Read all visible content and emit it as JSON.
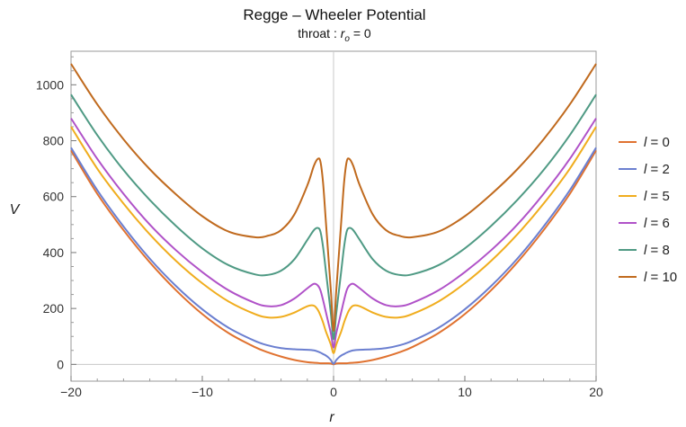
{
  "chart_data": {
    "type": "line",
    "title": "Regge – Wheeler Potential",
    "subtitle_prefix": "throat : ",
    "subtitle_var": "r",
    "subtitle_sub": "o",
    "subtitle_suffix": " = 0",
    "xlabel": "r",
    "ylabel": "V",
    "xlim": [
      -20,
      20
    ],
    "ylim": [
      -60,
      1120
    ],
    "xticks": [
      -20,
      -10,
      0,
      10,
      20
    ],
    "yticks": [
      0,
      200,
      400,
      600,
      800,
      1000
    ],
    "grid": false,
    "legend_position": "right",
    "series": [
      {
        "name": "l = 0",
        "l": 0,
        "color": "#e07230"
      },
      {
        "name": "l = 2",
        "l": 2,
        "color": "#6b7fd0"
      },
      {
        "name": "l = 5",
        "l": 5,
        "color": "#f0ad1e"
      },
      {
        "name": "l = 6",
        "l": 6,
        "color": "#b052c8"
      },
      {
        "name": "l = 8",
        "l": 8,
        "color": "#4f9a84"
      },
      {
        "name": "l = 10",
        "l": 10,
        "color": "#c06a1e"
      }
    ],
    "x": [
      -20,
      -18,
      -16,
      -14,
      -12,
      -10,
      -8,
      -6,
      -5,
      -4,
      -3,
      -2,
      -1.5,
      -1.2,
      -1,
      -0.8,
      -0.6,
      -0.4,
      -0.2,
      0,
      0.2,
      0.4,
      0.6,
      0.8,
      1,
      1.2,
      1.5,
      2,
      3,
      4,
      5,
      6,
      8,
      10,
      12,
      14,
      16,
      18,
      20
    ],
    "values": {
      "l = 0": [
        765,
        610,
        480,
        365,
        265,
        180,
        112,
        62,
        43,
        28,
        16,
        8,
        6,
        5,
        4,
        4,
        4,
        4,
        3,
        0,
        3,
        4,
        4,
        4,
        4,
        5,
        6,
        8,
        16,
        28,
        43,
        62,
        112,
        180,
        265,
        365,
        480,
        610,
        765
      ],
      "l = 2": [
        775,
        623,
        493,
        378,
        280,
        197,
        131,
        84,
        68,
        58,
        54,
        52,
        50,
        46,
        42,
        37,
        32,
        25,
        15,
        2,
        15,
        25,
        32,
        37,
        42,
        46,
        50,
        52,
        54,
        58,
        68,
        84,
        131,
        197,
        280,
        378,
        493,
        623,
        775
      ],
      "l = 5": [
        850,
        700,
        575,
        465,
        370,
        290,
        225,
        180,
        168,
        170,
        185,
        208,
        210,
        195,
        175,
        150,
        120,
        95,
        70,
        40,
        70,
        95,
        120,
        150,
        175,
        195,
        210,
        208,
        185,
        170,
        168,
        180,
        225,
        290,
        370,
        465,
        575,
        700,
        850
      ],
      "l = 6": [
        880,
        735,
        610,
        500,
        408,
        330,
        265,
        220,
        208,
        212,
        235,
        272,
        288,
        282,
        265,
        230,
        190,
        150,
        110,
        60,
        110,
        150,
        190,
        230,
        265,
        282,
        288,
        272,
        235,
        212,
        208,
        220,
        265,
        330,
        408,
        500,
        610,
        735,
        880
      ],
      "l = 8": [
        965,
        820,
        695,
        588,
        495,
        415,
        355,
        322,
        320,
        335,
        375,
        445,
        480,
        488,
        475,
        420,
        340,
        260,
        180,
        90,
        180,
        260,
        340,
        420,
        475,
        488,
        480,
        445,
        375,
        335,
        320,
        322,
        355,
        415,
        495,
        588,
        695,
        820,
        965
      ],
      "l = 10": [
        1075,
        930,
        805,
        698,
        608,
        530,
        475,
        455,
        460,
        480,
        535,
        640,
        710,
        735,
        725,
        650,
        520,
        390,
        260,
        120,
        260,
        390,
        520,
        650,
        725,
        735,
        710,
        640,
        535,
        480,
        460,
        455,
        475,
        530,
        608,
        698,
        805,
        930,
        1075
      ]
    }
  }
}
